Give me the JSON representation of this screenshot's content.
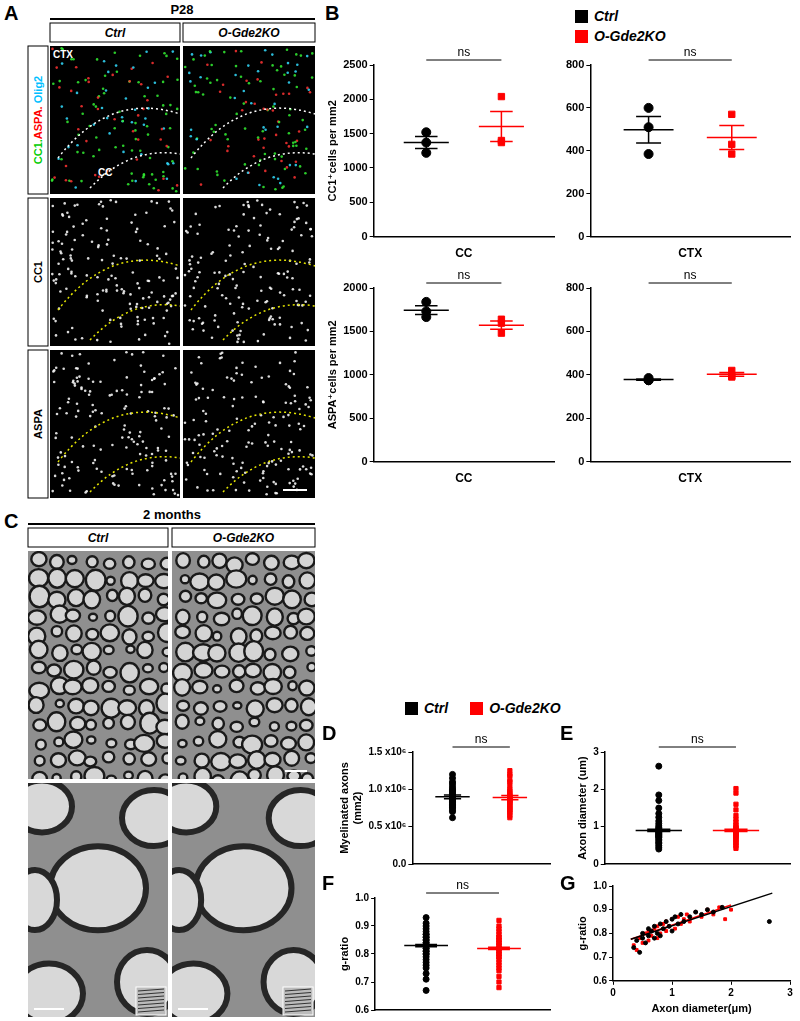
{
  "figure": {
    "panel_A": {
      "label": "A",
      "header": "P28",
      "columns": [
        "Ctrl",
        "O-Gde2KO"
      ],
      "rows": [
        {
          "label": [
            {
              "text": "CC1.",
              "color": "#00cc00"
            },
            {
              "text": "ASPA.",
              "color": "#ff0000"
            },
            {
              "text": " Olig2",
              "color": "#00bfff"
            }
          ],
          "annotations": [
            "CTX",
            "CC"
          ]
        },
        {
          "label": [
            {
              "text": "CC1",
              "color": "#000000"
            }
          ]
        },
        {
          "label": [
            {
              "text": "ASPA",
              "color": "#000000"
            }
          ]
        }
      ]
    },
    "panel_C": {
      "label": "C",
      "header": "2 months",
      "columns": [
        "Ctrl",
        "O-Gde2KO"
      ]
    }
  },
  "chart_data": [
    {
      "type": "dot_plot",
      "panel_label": "B",
      "y_label": "CC1⁺cells per mm2",
      "x_label": "CC",
      "ylim": [
        0,
        2500
      ],
      "yticks": [
        0,
        500,
        1000,
        1500,
        2000,
        2500
      ],
      "annotation": "ns",
      "series": [
        {
          "name": "Ctrl",
          "color": "#000000",
          "marker": "circle",
          "values": [
            1520,
            1370,
            1220
          ],
          "mean": 1370,
          "error": 87
        },
        {
          "name": "O-Gde2KO",
          "color": "#ff0000",
          "marker": "square",
          "values": [
            2040,
            1400,
            1370
          ],
          "mean": 1603,
          "error": 219
        }
      ]
    },
    {
      "type": "dot_plot",
      "x_label": "CTX",
      "ylim": [
        0,
        800
      ],
      "yticks": [
        0,
        200,
        400,
        600,
        800
      ],
      "annotation": "ns",
      "series": [
        {
          "name": "Ctrl",
          "color": "#000000",
          "marker": "circle",
          "values": [
            600,
            510,
            385
          ],
          "mean": 498,
          "error": 62
        },
        {
          "name": "O-Gde2KO",
          "color": "#ff0000",
          "marker": "square",
          "values": [
            570,
            430,
            385
          ],
          "mean": 462,
          "error": 56
        }
      ]
    },
    {
      "type": "dot_plot",
      "y_label": "ASPA⁺cells per mm2",
      "x_label": "CC",
      "ylim": [
        0,
        2000
      ],
      "yticks": [
        0,
        500,
        1000,
        1500,
        2000
      ],
      "annotation": "ns",
      "series": [
        {
          "name": "Ctrl",
          "color": "#000000",
          "marker": "circle",
          "values": [
            1840,
            1730,
            1665
          ],
          "mean": 1745,
          "error": 51
        },
        {
          "name": "O-Gde2KO",
          "color": "#ff0000",
          "marker": "square",
          "values": [
            1640,
            1595,
            1480
          ],
          "mean": 1572,
          "error": 48
        }
      ]
    },
    {
      "type": "dot_plot",
      "x_label": "CTX",
      "ylim": [
        0,
        800
      ],
      "yticks": [
        0,
        200,
        400,
        600,
        800
      ],
      "annotation": "ns",
      "series": [
        {
          "name": "Ctrl",
          "color": "#000000",
          "marker": "circle",
          "values": [
            385,
            375,
            375
          ],
          "mean": 378,
          "error": 3
        },
        {
          "name": "O-Gde2KO",
          "color": "#ff0000",
          "marker": "square",
          "values": [
            420,
            395,
            390
          ],
          "mean": 402,
          "error": 9
        }
      ]
    },
    {
      "type": "dot_plot",
      "panel_label": "D",
      "y_label": [
        "Myelinated axons",
        "(mm2)"
      ],
      "ylim": [
        0,
        1500000
      ],
      "yticks": [
        {
          "value": 0,
          "label": "0.0"
        },
        {
          "value": 500000,
          "label": "0.5 x10⁶"
        },
        {
          "value": 1000000,
          "label": "1.0 x10⁶"
        },
        {
          "value": 1500000,
          "label": "1.5 x10⁶"
        }
      ],
      "annotation": "ns",
      "series": [
        {
          "name": "Ctrl",
          "color": "#000000",
          "marker": "circle",
          "values": [
            1200000,
            1150000,
            1100000,
            1080000,
            1050000,
            1020000,
            1000000,
            980000,
            970000,
            950000,
            930000,
            920000,
            900000,
            900000,
            890000,
            880000,
            870000,
            860000,
            850000,
            840000,
            830000,
            820000,
            800000,
            790000,
            780000,
            760000,
            750000,
            720000,
            700000,
            620000
          ],
          "mean": 900000,
          "error": 25000
        },
        {
          "name": "O-Gde2KO",
          "color": "#ff0000",
          "marker": "square",
          "values": [
            1250000,
            1200000,
            1180000,
            1120000,
            1100000,
            1050000,
            1000000,
            980000,
            950000,
            930000,
            920000,
            900000,
            890000,
            880000,
            870000,
            860000,
            850000,
            840000,
            830000,
            820000,
            800000,
            780000,
            770000,
            750000,
            730000,
            720000,
            700000,
            680000,
            650000,
            620000
          ],
          "mean": 890000,
          "error": 28000
        }
      ]
    },
    {
      "type": "dot_plot",
      "panel_label": "E",
      "y_label": "Axon diameter (um)",
      "ylim": [
        0,
        3
      ],
      "yticks": [
        0,
        1,
        2,
        3
      ],
      "annotation": "ns",
      "series": [
        {
          "name": "Ctrl",
          "color": "#000000",
          "marker": "circle",
          "values": [
            2.62,
            1.85,
            1.7,
            1.5,
            1.35,
            1.25,
            1.15,
            1.08,
            1.02,
            0.98,
            0.95,
            0.92,
            0.9,
            0.88,
            0.86,
            0.84,
            0.82,
            0.8,
            0.78,
            0.76,
            0.74,
            0.72,
            0.7,
            0.66,
            0.62,
            0.58,
            0.55,
            0.5,
            0.45,
            0.4
          ],
          "mean": 0.9,
          "error": 0.03
        },
        {
          "name": "O-Gde2KO",
          "color": "#ff0000",
          "marker": "square",
          "values": [
            2.02,
            1.9,
            1.6,
            1.45,
            1.3,
            1.2,
            1.12,
            1.05,
            1.0,
            0.97,
            0.95,
            0.93,
            0.91,
            0.9,
            0.88,
            0.87,
            0.85,
            0.83,
            0.81,
            0.79,
            0.77,
            0.75,
            0.72,
            0.68,
            0.65,
            0.6,
            0.57,
            0.52,
            0.48,
            0.42
          ],
          "mean": 0.9,
          "error": 0.03
        }
      ]
    },
    {
      "type": "dot_plot",
      "panel_label": "F",
      "y_label": "g-ratio",
      "ylim": [
        0.6,
        1.0
      ],
      "yticks": [
        0.6,
        0.7,
        0.8,
        0.9,
        {
          "value": 1.0,
          "label": "1.0"
        }
      ],
      "annotation": "ns",
      "series": [
        {
          "name": "Ctrl",
          "color": "#000000",
          "marker": "circle",
          "values": [
            0.93,
            0.91,
            0.9,
            0.89,
            0.88,
            0.87,
            0.87,
            0.86,
            0.86,
            0.85,
            0.85,
            0.84,
            0.84,
            0.83,
            0.83,
            0.83,
            0.82,
            0.82,
            0.81,
            0.81,
            0.8,
            0.8,
            0.79,
            0.78,
            0.77,
            0.76,
            0.75,
            0.73,
            0.71,
            0.67
          ],
          "mean": 0.83,
          "error": 0.004
        },
        {
          "name": "O-Gde2KO",
          "color": "#ff0000",
          "marker": "square",
          "values": [
            0.92,
            0.9,
            0.89,
            0.88,
            0.87,
            0.86,
            0.86,
            0.85,
            0.85,
            0.84,
            0.84,
            0.83,
            0.83,
            0.82,
            0.82,
            0.82,
            0.81,
            0.81,
            0.8,
            0.8,
            0.79,
            0.79,
            0.78,
            0.77,
            0.76,
            0.75,
            0.74,
            0.72,
            0.7,
            0.68
          ],
          "mean": 0.82,
          "error": 0.004
        }
      ]
    },
    {
      "type": "scatter",
      "panel_label": "G",
      "y_label": "g-ratio",
      "x_label": "Axon diameter(μm)",
      "xlim": [
        0,
        3
      ],
      "xticks": [
        0,
        1,
        2,
        3
      ],
      "ylim": [
        0.6,
        1.0
      ],
      "yticks": [
        0.6,
        0.7,
        0.8,
        0.9,
        {
          "value": 1.0,
          "label": "1.0"
        }
      ],
      "series": [
        {
          "name": "Ctrl",
          "color": "#000000",
          "marker": "circle",
          "x": [
            0.35,
            0.4,
            0.45,
            0.5,
            0.5,
            0.55,
            0.6,
            0.6,
            0.65,
            0.7,
            0.7,
            0.75,
            0.8,
            0.8,
            0.85,
            0.9,
            0.95,
            1.0,
            1.0,
            1.05,
            1.1,
            1.15,
            1.2,
            1.3,
            1.4,
            1.5,
            1.6,
            1.7,
            1.85,
            2.65
          ],
          "values": [
            0.74,
            0.77,
            0.72,
            0.78,
            0.8,
            0.76,
            0.79,
            0.82,
            0.81,
            0.78,
            0.83,
            0.8,
            0.84,
            0.79,
            0.82,
            0.85,
            0.83,
            0.86,
            0.81,
            0.87,
            0.84,
            0.88,
            0.85,
            0.87,
            0.89,
            0.88,
            0.9,
            0.89,
            0.91,
            0.85
          ],
          "fit": {
            "x": [
              0.3,
              2.7
            ],
            "values": [
              0.775,
              0.97
            ]
          }
        },
        {
          "name": "O-Gde2KO",
          "color": "#ff0000",
          "marker": "square",
          "x": [
            0.35,
            0.4,
            0.45,
            0.5,
            0.55,
            0.6,
            0.6,
            0.65,
            0.7,
            0.75,
            0.75,
            0.8,
            0.85,
            0.9,
            0.9,
            0.95,
            1.0,
            1.05,
            1.1,
            1.15,
            1.2,
            1.25,
            1.3,
            1.4,
            1.5,
            1.6,
            1.7,
            1.8,
            1.9,
            2.0
          ],
          "values": [
            0.75,
            0.73,
            0.78,
            0.76,
            0.8,
            0.77,
            0.81,
            0.79,
            0.82,
            0.78,
            0.83,
            0.8,
            0.84,
            0.81,
            0.85,
            0.83,
            0.86,
            0.82,
            0.87,
            0.84,
            0.86,
            0.88,
            0.85,
            0.89,
            0.87,
            0.9,
            0.88,
            0.91,
            0.86,
            0.9
          ],
          "fit": {
            "x": [
              0.3,
              2.0
            ],
            "values": [
              0.775,
              0.92
            ]
          }
        }
      ]
    }
  ]
}
